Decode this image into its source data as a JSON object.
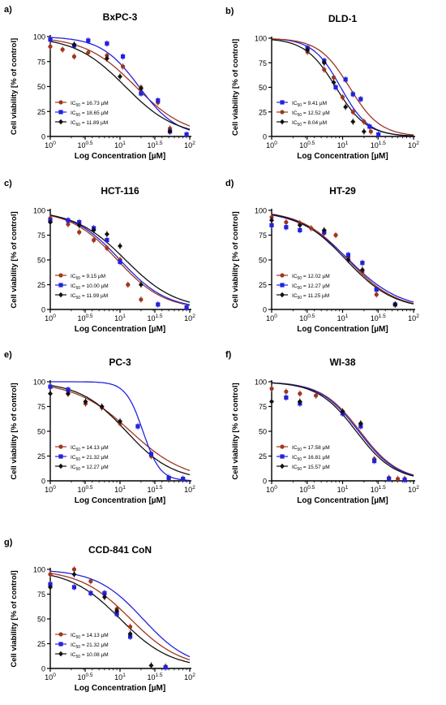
{
  "colors": {
    "brown": "#a0361f",
    "blue": "#2222dd",
    "black": "#111111",
    "fit": "#333333"
  },
  "chart_data": [
    {
      "type": "scatter",
      "panel": "a)",
      "title": "BxPC-3",
      "xlabel": "Log Concentration [µM]",
      "ylabel": "Cell viability [% of control]",
      "xscale": "log",
      "xlim": [
        1,
        100
      ],
      "ylim": [
        0,
        100
      ],
      "xticks": [
        "10^0",
        "10^0.5",
        "10^1",
        "10^1.5",
        "10^2"
      ],
      "yticks": [
        "0",
        "25",
        "50",
        "75",
        "100"
      ],
      "legend": "bottom-left",
      "series": [
        {
          "name": "IC50 = 16.73 µM",
          "ic50_label": "16.73 µM",
          "color": "brown",
          "marker": "circle",
          "ic50": 16.73,
          "hill": 1.2,
          "points": [
            [
              1,
              90
            ],
            [
              1.5,
              87
            ],
            [
              2.2,
              80
            ],
            [
              3.5,
              84
            ],
            [
              6.5,
              81
            ],
            [
              11,
              70
            ],
            [
              20,
              49
            ],
            [
              35,
              34
            ],
            [
              52,
              8
            ]
          ]
        },
        {
          "name": "IC50 = 18.65 µM",
          "ic50_label": "18.65 µM",
          "color": "blue",
          "marker": "square",
          "ic50": 18.65,
          "hill": 1.6,
          "points": [
            [
              1,
              97
            ],
            [
              2.2,
              91
            ],
            [
              3.5,
              96
            ],
            [
              6.5,
              93
            ],
            [
              11,
              80
            ],
            [
              20,
              43
            ],
            [
              35,
              36
            ],
            [
              52,
              5
            ],
            [
              90,
              2
            ]
          ]
        },
        {
          "name": "IC50 = 11.89 µM",
          "ic50_label": "11.89 µM",
          "color": "black",
          "marker": "diamond",
          "ic50": 11.89,
          "hill": 1.2,
          "points": [
            [
              2.2,
              92
            ],
            [
              6.5,
              78
            ],
            [
              10,
              60
            ],
            [
              20,
              48
            ],
            [
              52,
              5
            ]
          ]
        }
      ]
    },
    {
      "type": "scatter",
      "panel": "b)",
      "title": "DLD-1",
      "xlabel": "Log Concentration [µM]",
      "ylabel": "Cell viability [% of control]",
      "xscale": "log",
      "xlim": [
        1,
        100
      ],
      "ylim": [
        0,
        100
      ],
      "xticks": [
        "10^0",
        "10^0.5",
        "10^1",
        "10^1.5",
        "10^2"
      ],
      "yticks": [
        "0",
        "25",
        "50",
        "75",
        "100"
      ],
      "legend": "bottom-left",
      "series": [
        {
          "name": "IC50 = 9.41 µM",
          "ic50_label": "9.41 µM",
          "color": "blue",
          "marker": "square",
          "ic50": 9.41,
          "hill": 2.2,
          "points": [
            [
              3.2,
              90
            ],
            [
              5.5,
              77
            ],
            [
              8,
              50
            ],
            [
              11,
              58
            ],
            [
              14,
              43
            ],
            [
              18,
              38
            ],
            [
              24,
              10
            ],
            [
              32,
              2
            ]
          ]
        },
        {
          "name": "IC50 = 12.52 µM",
          "ic50_label": "12.52 µM",
          "color": "brown",
          "marker": "circle",
          "ic50": 12.52,
          "hill": 2.0,
          "points": [
            [
              3.2,
              86
            ],
            [
              5.5,
              68
            ],
            [
              7.5,
              60
            ],
            [
              10,
              40
            ],
            [
              14,
              25
            ],
            [
              20,
              15
            ],
            [
              25,
              5
            ]
          ]
        },
        {
          "name": "IC50 = 8.04 µM",
          "ic50_label": "8.04 µM",
          "color": "black",
          "marker": "diamond",
          "ic50": 8.04,
          "hill": 2.0,
          "points": [
            [
              3.2,
              88
            ],
            [
              5.5,
              75
            ],
            [
              7.5,
              55
            ],
            [
              11,
              30
            ],
            [
              14,
              15
            ],
            [
              20,
              5
            ]
          ]
        }
      ]
    },
    {
      "type": "scatter",
      "panel": "c)",
      "title": "HCT-116",
      "xlabel": "Log Concentration [µM]",
      "ylabel": "Cell viability [% of control]",
      "xscale": "log",
      "xlim": [
        1,
        100
      ],
      "ylim": [
        0,
        100
      ],
      "xticks": [
        "10^0",
        "10^0.5",
        "10^1",
        "10^1.5",
        "10^2"
      ],
      "yticks": [
        "0",
        "25",
        "50",
        "75",
        "100"
      ],
      "legend": "bottom-left",
      "series": [
        {
          "name": "IC50 = 9.15 µM",
          "ic50_label": "9.15 µM",
          "color": "brown",
          "marker": "circle",
          "ic50": 9.15,
          "hill": 1.3,
          "points": [
            [
              1,
              92
            ],
            [
              1.8,
              86
            ],
            [
              2.6,
              78
            ],
            [
              4.2,
              70
            ],
            [
              6.5,
              62
            ],
            [
              10,
              50
            ],
            [
              13,
              25
            ],
            [
              20,
              10
            ]
          ]
        },
        {
          "name": "IC50 = 10.00 µM",
          "ic50_label": "10.00 µM",
          "color": "blue",
          "marker": "square",
          "ic50": 10.0,
          "hill": 1.3,
          "points": [
            [
              1,
              90
            ],
            [
              1.8,
              90
            ],
            [
              2.6,
              88
            ],
            [
              4.2,
              82
            ],
            [
              6.5,
              70
            ],
            [
              10,
              48
            ],
            [
              35,
              5
            ],
            [
              90,
              2
            ]
          ]
        },
        {
          "name": "IC50 = 11.99 µM",
          "ic50_label": "11.99 µM",
          "color": "black",
          "marker": "diamond",
          "ic50": 11.99,
          "hill": 1.2,
          "points": [
            [
              1,
              88
            ],
            [
              2.6,
              85
            ],
            [
              4.2,
              80
            ],
            [
              6.5,
              76
            ],
            [
              10,
              64
            ],
            [
              20,
              25
            ]
          ]
        }
      ]
    },
    {
      "type": "scatter",
      "panel": "d)",
      "title": "HT-29",
      "xlabel": "Log Concentration [µM]",
      "ylabel": "Cell viability [% of control]",
      "xscale": "log",
      "xlim": [
        1,
        100
      ],
      "ylim": [
        0,
        100
      ],
      "xticks": [
        "10^0",
        "10^0.5",
        "10^1",
        "10^1.5",
        "10^2"
      ],
      "yticks": [
        "0",
        "25",
        "50",
        "75",
        "100"
      ],
      "legend": "bottom-left",
      "series": [
        {
          "name": "IC50 = 12.02 µM",
          "ic50_label": "12.02 µM",
          "color": "brown",
          "marker": "circle",
          "ic50": 12.02,
          "hill": 1.3,
          "points": [
            [
              1,
              93
            ],
            [
              1.6,
              88
            ],
            [
              2.5,
              87
            ],
            [
              3.6,
              82
            ],
            [
              5.5,
              77
            ],
            [
              8,
              75
            ],
            [
              12,
              52
            ],
            [
              19,
              38
            ],
            [
              30,
              15
            ],
            [
              55,
              5
            ]
          ]
        },
        {
          "name": "IC50 = 12.27 µM",
          "ic50_label": "12.27 µM",
          "color": "blue",
          "marker": "square",
          "ic50": 12.27,
          "hill": 1.2,
          "points": [
            [
              1,
              85
            ],
            [
              1.6,
              83
            ],
            [
              2.5,
              80
            ],
            [
              5.5,
              78
            ],
            [
              12,
              55
            ],
            [
              19,
              47
            ],
            [
              30,
              20
            ],
            [
              55,
              5
            ]
          ]
        },
        {
          "name": "IC50 = 11.25 µM",
          "ic50_label": "11.25 µM",
          "color": "black",
          "marker": "diamond",
          "ic50": 11.25,
          "hill": 1.3,
          "points": [
            [
              1,
              90
            ],
            [
              2.5,
              85
            ],
            [
              5.5,
              80
            ],
            [
              12,
              50
            ],
            [
              19,
              40
            ],
            [
              55,
              5
            ]
          ]
        }
      ]
    },
    {
      "type": "scatter",
      "panel": "e)",
      "title": "PC-3",
      "xlabel": "Log Concentration  [µM]",
      "ylabel": "Cell viability [% of control]",
      "xscale": "log",
      "xlim": [
        1,
        100
      ],
      "ylim": [
        0,
        100
      ],
      "xticks": [
        "10^0",
        "10^0.5",
        "10^1",
        "10^1.5",
        "10^2"
      ],
      "yticks": [
        "0",
        "25",
        "50",
        "75",
        "100"
      ],
      "legend": "bottom-left",
      "series": [
        {
          "name": "IC50 = 14.13 µM",
          "ic50_label": "14.13 µM",
          "color": "brown",
          "marker": "circle",
          "ic50": 14.13,
          "hill": 1.1,
          "points": [
            [
              1,
              95
            ],
            [
              1.8,
              88
            ],
            [
              3.2,
              78
            ],
            [
              5.5,
              74
            ],
            [
              10,
              58
            ],
            [
              18,
              55
            ],
            [
              28,
              25
            ],
            [
              50,
              3
            ],
            [
              80,
              2
            ]
          ]
        },
        {
          "name": "IC50 = 21.32 µM",
          "ic50_label": "21.32 µM",
          "color": "blue",
          "marker": "square",
          "ic50": 21.32,
          "hill": 3.5,
          "points": [
            [
              1,
              95
            ],
            [
              1.8,
              92
            ],
            [
              18,
              55
            ],
            [
              28,
              27
            ],
            [
              50,
              3
            ],
            [
              80,
              2
            ]
          ]
        },
        {
          "name": "IC50 = 12.27 µM",
          "ic50_label": "12.27 µM",
          "color": "black",
          "marker": "diamond",
          "ic50": 12.27,
          "hill": 1.3,
          "points": [
            [
              1,
              88
            ],
            [
              1.8,
              88
            ],
            [
              3.2,
              80
            ],
            [
              5.5,
              75
            ],
            [
              10,
              60
            ]
          ]
        }
      ]
    },
    {
      "type": "scatter",
      "panel": "f)",
      "title": "WI-38",
      "xlabel": "Log Concentration [µM]",
      "ylabel": "Cell viability [% of control]",
      "xscale": "log",
      "xlim": [
        1,
        100
      ],
      "ylim": [
        0,
        100
      ],
      "xticks": [
        "10^0",
        "10^0.5",
        "10^1",
        "10^1.5",
        "10^2"
      ],
      "yticks": [
        "0",
        "25",
        "50",
        "75",
        "100"
      ],
      "legend": "bottom-left",
      "series": [
        {
          "name": "IC50 = 17.58 µM",
          "ic50_label": "17.58 µM",
          "color": "brown",
          "marker": "circle",
          "ic50": 17.58,
          "hill": 1.6,
          "points": [
            [
              1,
              93
            ],
            [
              1.6,
              90
            ],
            [
              2.5,
              88
            ],
            [
              4.2,
              86
            ],
            [
              10,
              70
            ],
            [
              18,
              57
            ],
            [
              28,
              22
            ],
            [
              45,
              3
            ],
            [
              60,
              2
            ],
            [
              75,
              2
            ]
          ]
        },
        {
          "name": "IC50 = 16.81 µM",
          "ic50_label": "16.81 µM",
          "color": "blue",
          "marker": "square",
          "ic50": 16.81,
          "hill": 1.6,
          "points": [
            [
              1.6,
              84
            ],
            [
              2.5,
              78
            ],
            [
              10,
              68
            ],
            [
              18,
              55
            ],
            [
              28,
              20
            ],
            [
              45,
              2
            ],
            [
              75,
              1
            ]
          ]
        },
        {
          "name": "IC50 = 15.57 µM",
          "ic50_label": "15.57 µM",
          "color": "black",
          "marker": "diamond",
          "ic50": 15.57,
          "hill": 1.6,
          "points": [
            [
              1,
              80
            ],
            [
              2.5,
              80
            ],
            [
              10,
              70
            ],
            [
              18,
              58
            ]
          ]
        }
      ]
    },
    {
      "type": "scatter",
      "panel": "g)",
      "title": "CCD-841 CoN",
      "xlabel": "Log Concentration [µM]",
      "ylabel": "Cell viability [% of control]",
      "xscale": "log",
      "xlim": [
        1,
        100
      ],
      "ylim": [
        0,
        100
      ],
      "xticks": [
        "10^0",
        "10^0.5",
        "10^1",
        "10^1.5",
        "10^2"
      ],
      "yticks": [
        "0",
        "25",
        "50",
        "75",
        "100"
      ],
      "legend": "bottom-left",
      "series": [
        {
          "name": "IC50 = 14.13 µM",
          "ic50_label": "14.13 µM",
          "color": "brown",
          "marker": "circle",
          "ic50": 14.13,
          "hill": 1.2,
          "points": [
            [
              1,
              95
            ],
            [
              2.2,
              100
            ],
            [
              3.8,
              88
            ],
            [
              6,
              75
            ],
            [
              9,
              60
            ],
            [
              14,
              42
            ],
            [
              45,
              2
            ]
          ]
        },
        {
          "name": "IC50 = 21.32 µM",
          "ic50_label": "21.32 µM",
          "color": "blue",
          "marker": "square",
          "ic50": 21.32,
          "hill": 1.3,
          "points": [
            [
              1,
              85
            ],
            [
              2.2,
              82
            ],
            [
              3.8,
              76
            ],
            [
              6,
              76
            ],
            [
              9,
              55
            ],
            [
              14,
              32
            ],
            [
              45,
              1
            ]
          ]
        },
        {
          "name": "IC50 = 10.08 µM",
          "ic50_label": "10.08 µM",
          "color": "black",
          "marker": "diamond",
          "ic50": 10.08,
          "hill": 1.2,
          "points": [
            [
              1,
              82
            ],
            [
              2.2,
              95
            ],
            [
              6,
              72
            ],
            [
              9,
              58
            ],
            [
              14,
              35
            ],
            [
              28,
              3
            ]
          ]
        }
      ]
    }
  ]
}
